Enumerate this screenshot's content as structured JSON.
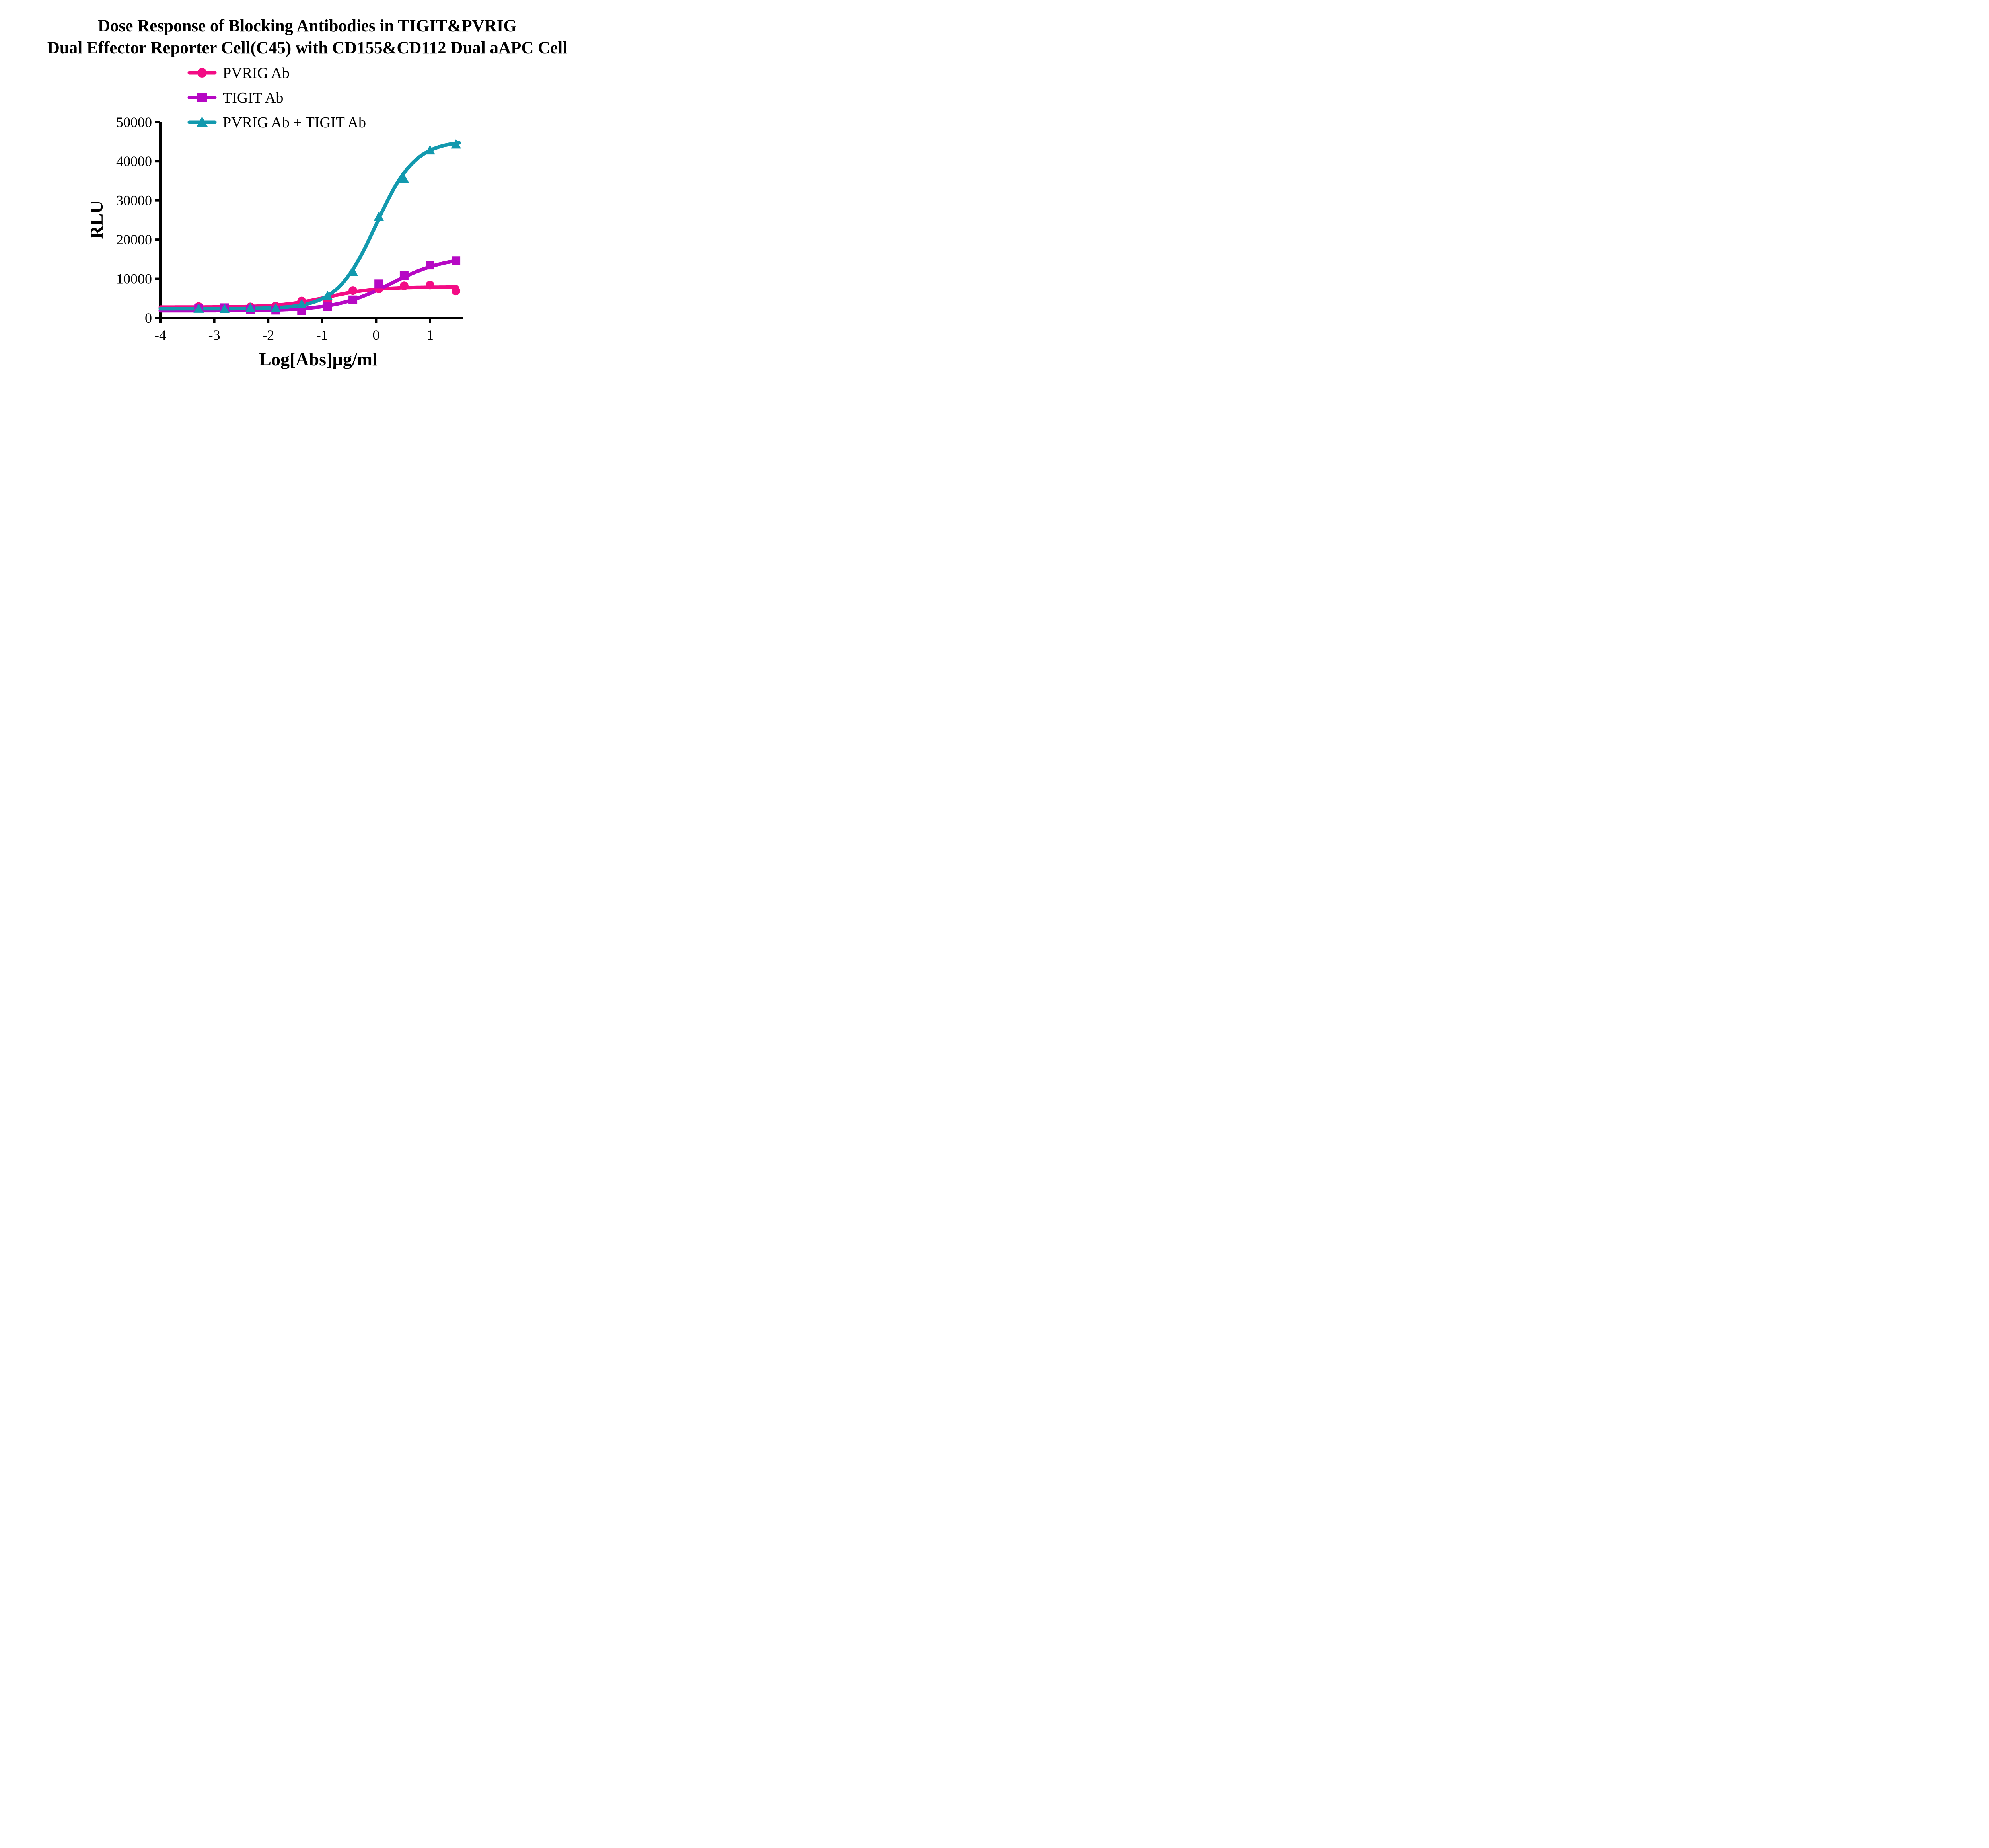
{
  "title": {
    "line1": "Dose Response of Blocking Antibodies in TIGIT&PVRIG",
    "line2": "Dual Effector Reporter Cell(C45) with CD155&CD112 Dual aAPC Cell"
  },
  "colors": {
    "pvrig": "#F30C85",
    "tigit": "#B608C4",
    "combo": "#1299AE",
    "axis": "#000000",
    "background": "#ffffff"
  },
  "chart_data": {
    "type": "scatter",
    "title": "Dose Response of Blocking Antibodies in TIGIT&PVRIG Dual Effector Reporter Cell(C45) with CD155&CD112 Dual aAPC Cell",
    "xlabel": "Log[Abs]µg/ml",
    "ylabel": "RLU",
    "xlim": [
      -4,
      1.6
    ],
    "ylim": [
      0,
      50000
    ],
    "x_ticks": [
      -4,
      -3,
      -2,
      -1,
      0,
      1
    ],
    "y_ticks": [
      0,
      10000,
      20000,
      30000,
      40000,
      50000
    ],
    "grid": "off",
    "legend_position": "top-left above plot",
    "x": [
      -3.29,
      -2.81,
      -2.33,
      -1.86,
      -1.38,
      -0.9,
      -0.43,
      0.05,
      0.52,
      1.0,
      1.48
    ],
    "series": [
      {
        "name": "PVRIG Ab",
        "marker": "circle",
        "color_key": "pvrig",
        "values": [
          2900,
          2500,
          2800,
          3000,
          4300,
          4500,
          7000,
          7400,
          8200,
          8400,
          6900
        ],
        "fit": {
          "model": "4PL",
          "bottom": 2750,
          "top": 7900,
          "logec50": -0.9,
          "hill": 1.0,
          "xend": 1.5
        }
      },
      {
        "name": "TIGIT Ab",
        "marker": "square",
        "color_key": "tigit",
        "values": [
          2500,
          2600,
          2200,
          2000,
          1900,
          2900,
          4600,
          8700,
          10800,
          13500,
          14600
        ],
        "fit": {
          "model": "4PL",
          "bottom": 1850,
          "top": 15800,
          "logec50": 0.28,
          "hill": 0.85,
          "xend": 1.5
        }
      },
      {
        "name": "PVRIG Ab + TIGIT Ab",
        "marker": "triangle",
        "color_key": "combo",
        "values": [
          2400,
          2300,
          2500,
          2500,
          3500,
          5600,
          11800,
          25800,
          35400,
          42800,
          44300
        ],
        "fit": {
          "model": "4PL",
          "bottom": 2350,
          "top": 45300,
          "logec50": 0.0,
          "hill": 1.2,
          "xend": 1.54
        }
      }
    ]
  }
}
